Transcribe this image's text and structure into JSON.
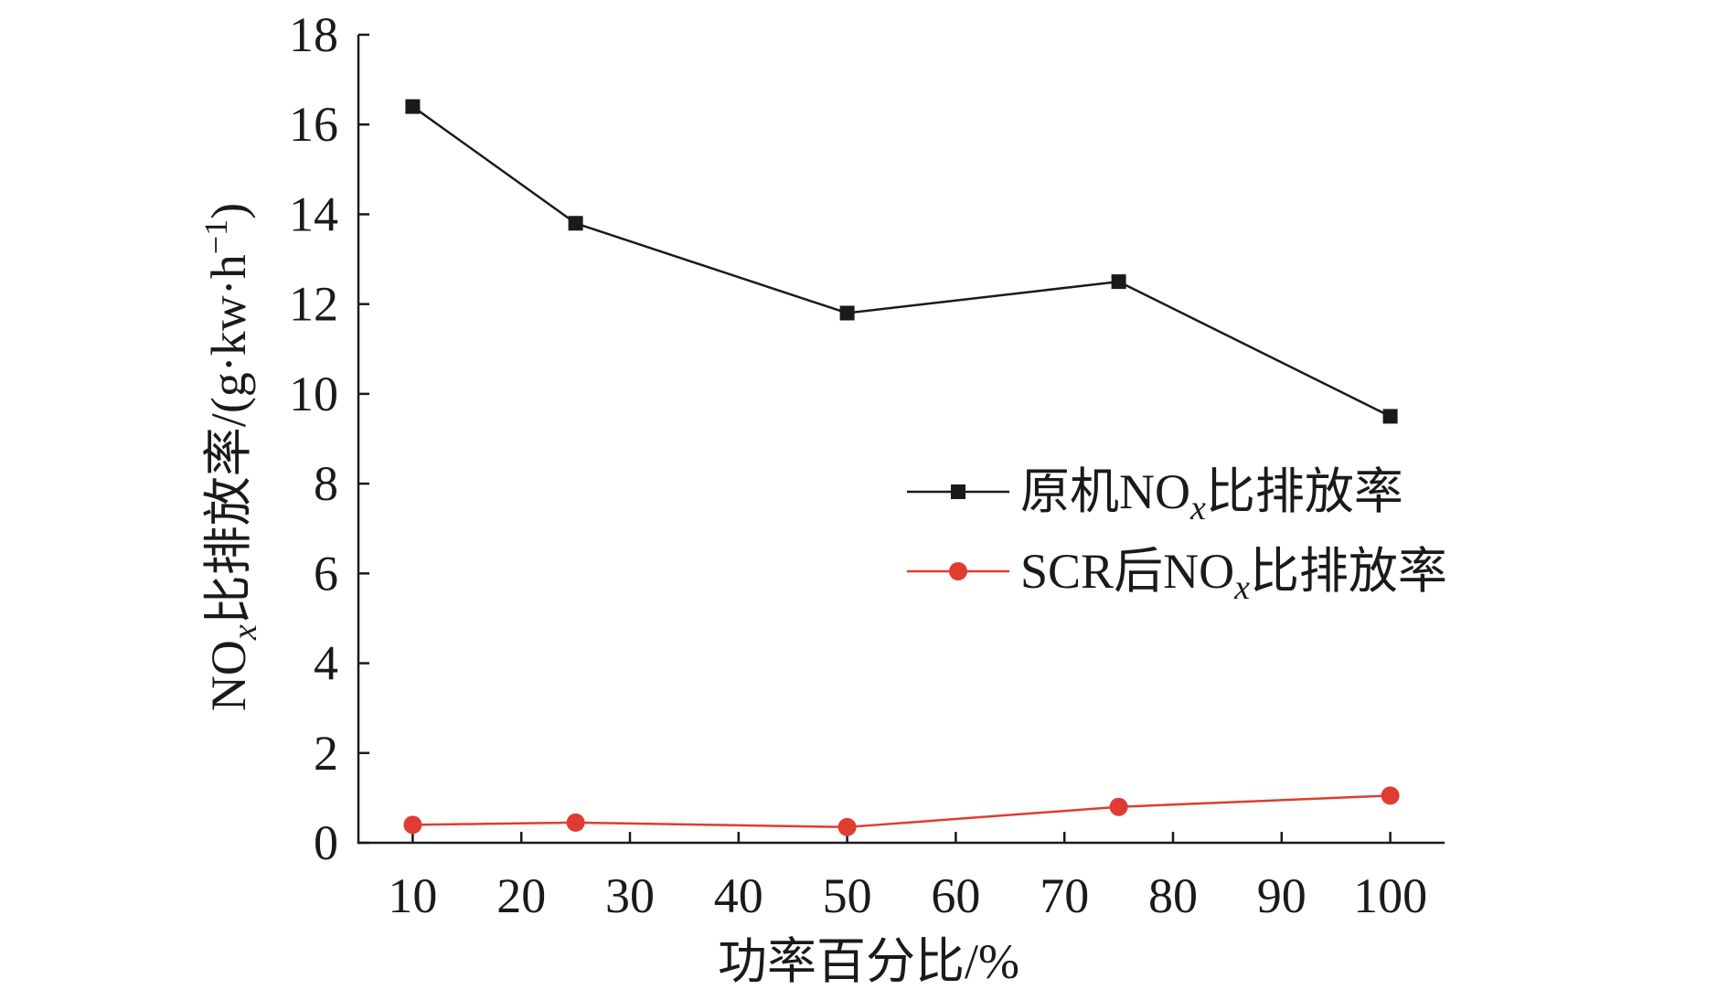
{
  "chart_data": {
    "type": "line",
    "xlabel": "功率百分比/%",
    "ylabel": {
      "prefix": "NO",
      "sub": "x",
      "middle": "比排放率/(g·kw·h",
      "sup": "−1",
      "suffix": ")"
    },
    "xlim": [
      5,
      105
    ],
    "ylim": [
      0,
      18
    ],
    "xticks": [
      10,
      20,
      30,
      40,
      50,
      60,
      70,
      80,
      90,
      100
    ],
    "yticks": [
      0,
      2,
      4,
      6,
      8,
      10,
      12,
      14,
      16,
      18
    ],
    "grid": false,
    "legend_position": "right",
    "series": [
      {
        "name": "原机NOx比排放率",
        "legend_parts": {
          "pre": "原机NO",
          "sub": "x",
          "post": "比排放率"
        },
        "color": "#1a1a1a",
        "marker": "square",
        "x": [
          10,
          25,
          50,
          75,
          100
        ],
        "y": [
          16.4,
          13.8,
          11.8,
          12.5,
          9.5
        ]
      },
      {
        "name": "SCR后NOx比排放率",
        "legend_parts": {
          "pre": "SCR后NO",
          "sub": "x",
          "post": "比排放率"
        },
        "color": "#e03c31",
        "marker": "circle",
        "x": [
          10,
          25,
          50,
          75,
          100
        ],
        "y": [
          0.4,
          0.45,
          0.35,
          0.8,
          1.05
        ]
      }
    ]
  }
}
